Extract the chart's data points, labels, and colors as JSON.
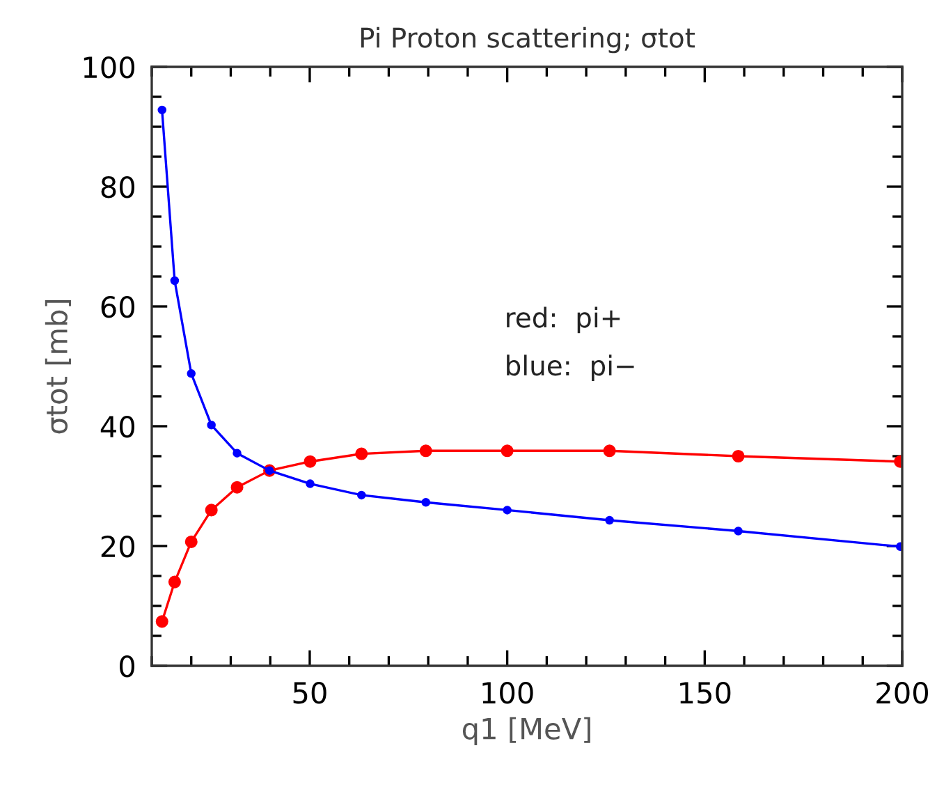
{
  "chart_data": {
    "type": "line",
    "title": "Pi Proton scattering; σtot",
    "xlabel": "q1 [MeV]",
    "ylabel": "σtot [mb]",
    "annotations": [
      "red:  pi+",
      "blue:  pi−"
    ],
    "x": [
      12.6,
      15.8,
      20,
      25.1,
      31.6,
      39.8,
      50.1,
      63.1,
      79.4,
      100,
      125.9,
      158.5,
      199.5
    ],
    "series": [
      {
        "color": "#ff0000",
        "values": [
          7.4,
          14.0,
          20.7,
          26.0,
          29.8,
          32.6,
          34.1,
          35.4,
          35.9,
          35.9,
          35.9,
          35.0,
          34.1
        ]
      },
      {
        "color": "#0000ff",
        "values": [
          92.8,
          64.3,
          48.8,
          40.2,
          35.5,
          32.6,
          30.4,
          28.5,
          27.3,
          26.0,
          24.3,
          22.5,
          19.9
        ]
      }
    ],
    "marker": "circle",
    "line_style": "solid",
    "grid": false,
    "legend": false,
    "xlim": [
      10,
      200
    ],
    "ylim": [
      0,
      100
    ],
    "xticks": [
      {
        "value": 10,
        "label": null
      },
      {
        "value": 20,
        "label": null
      },
      {
        "value": 30,
        "label": null
      },
      {
        "value": 40,
        "label": null
      },
      50,
      {
        "value": 60,
        "label": null
      },
      {
        "value": 70,
        "label": null
      },
      {
        "value": 80,
        "label": null
      },
      {
        "value": 90,
        "label": null
      },
      100,
      {
        "value": 110,
        "label": null
      },
      {
        "value": 120,
        "label": null
      },
      {
        "value": 130,
        "label": null
      },
      {
        "value": 140,
        "label": null
      },
      150,
      {
        "value": 160,
        "label": null
      },
      {
        "value": 170,
        "label": null
      },
      {
        "value": 180,
        "label": null
      },
      {
        "value": 190,
        "label": null
      },
      200
    ],
    "yticks": [
      0,
      {
        "value": 5,
        "label": null
      },
      {
        "value": 10,
        "label": null
      },
      {
        "value": 15,
        "label": null
      },
      20,
      {
        "value": 25,
        "label": null
      },
      {
        "value": 30,
        "label": null
      },
      {
        "value": 35,
        "label": null
      },
      40,
      {
        "value": 45,
        "label": null
      },
      {
        "value": 50,
        "label": null
      },
      {
        "value": 55,
        "label": null
      },
      60,
      {
        "value": 65,
        "label": null
      },
      {
        "value": 70,
        "label": null
      },
      {
        "value": 75,
        "label": null
      },
      80,
      {
        "value": 85,
        "label": null
      },
      {
        "value": 90,
        "label": null
      },
      {
        "value": 95,
        "label": null
      },
      100
    ]
  }
}
